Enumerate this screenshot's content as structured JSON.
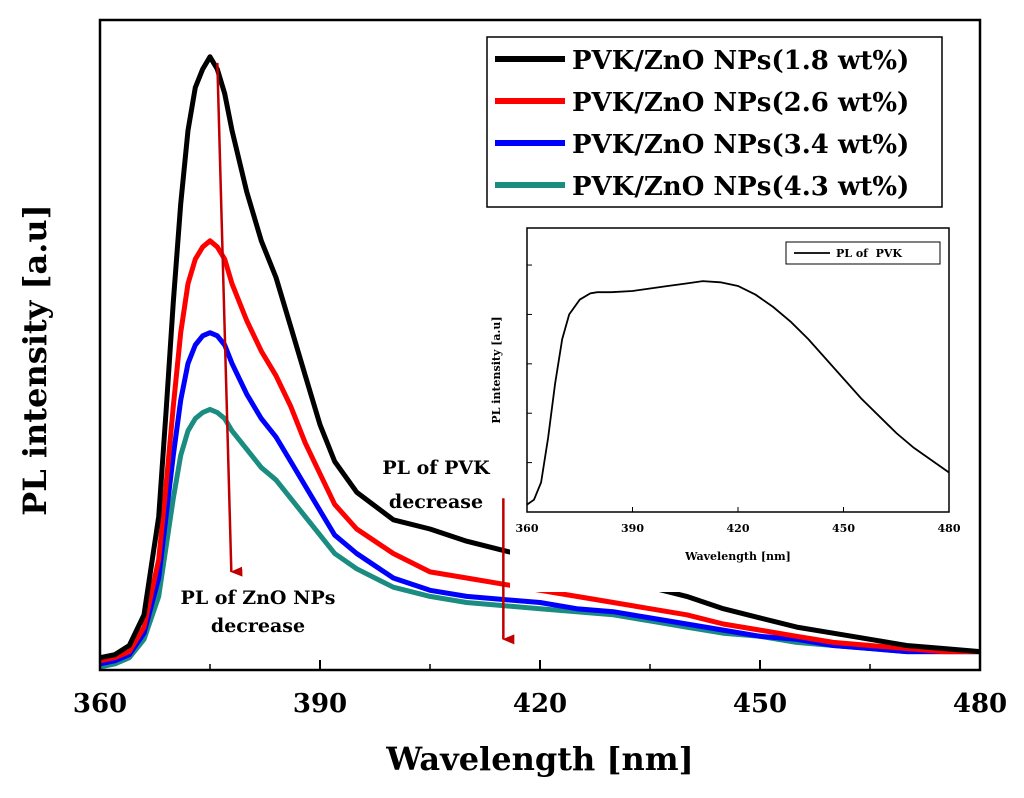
{
  "chart_data": [
    {
      "type": "line",
      "title": "",
      "xlabel": "Wavelength [nm]",
      "ylabel": "PL intensity [a.u]",
      "xlim": [
        360,
        480
      ],
      "ylim": [
        0,
        1.06
      ],
      "x_ticks": [
        "360",
        "390",
        "420",
        "450",
        "480"
      ],
      "grid": false,
      "legend_position": "top-right",
      "x": [
        360,
        362,
        364,
        366,
        368,
        369,
        370,
        371,
        372,
        373,
        374,
        375,
        376,
        377,
        378,
        380,
        382,
        384,
        386,
        388,
        390,
        392,
        395,
        400,
        405,
        410,
        415,
        420,
        425,
        430,
        435,
        440,
        445,
        450,
        455,
        460,
        465,
        470,
        475,
        480
      ],
      "series": [
        {
          "name": "PVK/ZnO NPs(1.8 wt%)",
          "color": "#000000",
          "values": [
            0.02,
            0.025,
            0.04,
            0.09,
            0.25,
            0.42,
            0.6,
            0.76,
            0.88,
            0.95,
            0.98,
            1.0,
            0.98,
            0.94,
            0.88,
            0.78,
            0.7,
            0.64,
            0.56,
            0.48,
            0.4,
            0.34,
            0.29,
            0.245,
            0.23,
            0.21,
            0.195,
            0.18,
            0.165,
            0.15,
            0.135,
            0.12,
            0.1,
            0.085,
            0.07,
            0.06,
            0.05,
            0.04,
            0.035,
            0.03
          ]
        },
        {
          "name": "PVK/ZnO NPs(2.6 wt%)",
          "color": "#ff0000",
          "values": [
            0.015,
            0.02,
            0.03,
            0.07,
            0.18,
            0.3,
            0.43,
            0.55,
            0.63,
            0.67,
            0.69,
            0.7,
            0.69,
            0.67,
            0.63,
            0.57,
            0.52,
            0.48,
            0.43,
            0.37,
            0.32,
            0.27,
            0.23,
            0.19,
            0.16,
            0.15,
            0.14,
            0.13,
            0.12,
            0.11,
            0.1,
            0.09,
            0.075,
            0.065,
            0.055,
            0.045,
            0.04,
            0.035,
            0.03,
            0.03
          ]
        },
        {
          "name": "PVK/ZnO NPs(3.4 wt%)",
          "color": "#0000ff",
          "values": [
            0.01,
            0.015,
            0.025,
            0.06,
            0.15,
            0.25,
            0.35,
            0.44,
            0.5,
            0.53,
            0.545,
            0.55,
            0.545,
            0.53,
            0.5,
            0.45,
            0.41,
            0.38,
            0.34,
            0.3,
            0.26,
            0.22,
            0.19,
            0.15,
            0.13,
            0.12,
            0.115,
            0.11,
            0.1,
            0.095,
            0.085,
            0.075,
            0.065,
            0.055,
            0.05,
            0.04,
            0.035,
            0.03,
            0.03,
            0.03
          ]
        },
        {
          "name": "PVK/ZnO NPs(4.3 wt%)",
          "color": "#1a8c80",
          "values": [
            0.005,
            0.01,
            0.02,
            0.05,
            0.12,
            0.2,
            0.28,
            0.35,
            0.39,
            0.41,
            0.42,
            0.425,
            0.42,
            0.41,
            0.39,
            0.36,
            0.33,
            0.31,
            0.28,
            0.25,
            0.22,
            0.19,
            0.165,
            0.135,
            0.12,
            0.11,
            0.105,
            0.1,
            0.095,
            0.09,
            0.08,
            0.07,
            0.06,
            0.055,
            0.045,
            0.04,
            0.035,
            0.03,
            0.03,
            0.03
          ]
        }
      ],
      "annotations": [
        {
          "text_lines": [
            "PL of ZnO NPs",
            "decrease"
          ],
          "arrow_x": 376,
          "arrow_from": 0.99,
          "arrow_to": 0.16
        },
        {
          "text_lines": [
            "PL of PVK",
            "decrease"
          ],
          "arrow_x": 415,
          "arrow_from": 0.28,
          "arrow_to": 0.05
        }
      ]
    },
    {
      "type": "line",
      "title": "",
      "xlabel": "Wavelength [nm]",
      "ylabel": "PL intensity [a.u]",
      "xlim": [
        360,
        480
      ],
      "ylim": [
        0,
        1.15
      ],
      "x_ticks": [
        "360",
        "390",
        "420",
        "450",
        "480"
      ],
      "grid": false,
      "legend_position": "top-right",
      "x": [
        360,
        362,
        364,
        366,
        368,
        370,
        372,
        375,
        378,
        380,
        384,
        390,
        395,
        400,
        405,
        410,
        415,
        420,
        425,
        430,
        435,
        440,
        445,
        450,
        455,
        460,
        465,
        470,
        475,
        480
      ],
      "series": [
        {
          "name": "PL of  PVK",
          "color": "#000000",
          "values": [
            0.03,
            0.05,
            0.12,
            0.3,
            0.52,
            0.7,
            0.8,
            0.86,
            0.885,
            0.89,
            0.89,
            0.895,
            0.905,
            0.915,
            0.925,
            0.935,
            0.93,
            0.915,
            0.88,
            0.83,
            0.77,
            0.7,
            0.62,
            0.54,
            0.46,
            0.39,
            0.32,
            0.26,
            0.21,
            0.16
          ]
        }
      ]
    }
  ]
}
